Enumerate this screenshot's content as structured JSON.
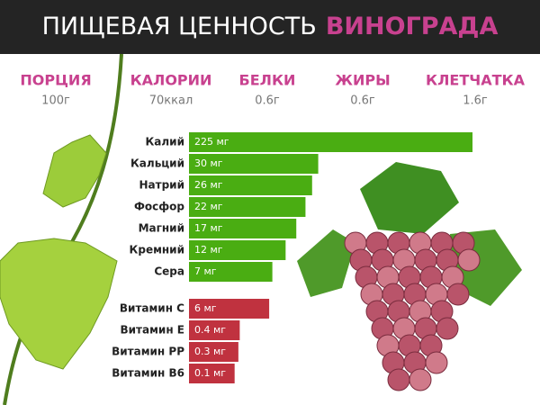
{
  "header": {
    "title": "ПИЩЕВАЯ ЦЕННОСТЬ",
    "title_accent": "ВИНОГРАДА"
  },
  "summary": [
    {
      "label": "ПОРЦИЯ",
      "value": "100г"
    },
    {
      "label": "КАЛОРИИ",
      "value": "70ккал"
    },
    {
      "label": "БЕЛКИ",
      "value": "0.6г"
    },
    {
      "label": "ЖИРЫ",
      "value": "0.6г"
    },
    {
      "label": "КЛЕТЧАТКА",
      "value": "1.6г"
    }
  ],
  "chart_data": [
    {
      "type": "bar",
      "orientation": "horizontal",
      "color": "#4aad12",
      "categories": [
        "Калий",
        "Кальций",
        "Натрий",
        "Фосфор",
        "Магний",
        "Кремний",
        "Сера"
      ],
      "values": [
        225,
        30,
        26,
        22,
        17,
        12,
        7
      ],
      "value_labels": [
        "225 мг",
        "30 мг",
        "26 мг",
        "22 мг",
        "17 мг",
        "12 мг",
        "7 мг"
      ]
    },
    {
      "type": "bar",
      "orientation": "horizontal",
      "color": "#c0323f",
      "categories": [
        "Витамин C",
        "Витамин E",
        "Витамин PP",
        "Витамин B6"
      ],
      "values": [
        6,
        0.4,
        0.3,
        0.1
      ],
      "value_labels": [
        "6 мг",
        "0.4 мг",
        "0.3 мг",
        "0.1 мг"
      ]
    }
  ]
}
